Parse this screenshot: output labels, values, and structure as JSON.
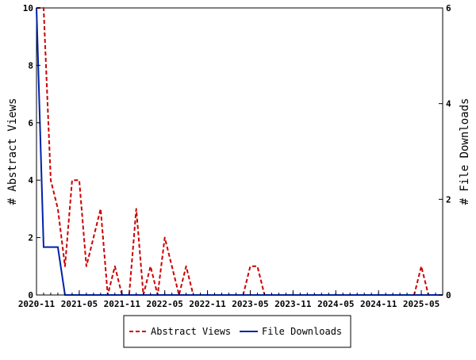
{
  "chart_data": {
    "type": "line",
    "ylabel": "# Abstract Views",
    "y2label": "# File Downloads",
    "ylim": [
      0,
      10
    ],
    "y2lim": [
      0,
      6
    ],
    "yticks": [
      "0",
      "2",
      "4",
      "6",
      "8",
      "10"
    ],
    "y2ticks": [
      "0",
      "2",
      "4",
      "6"
    ],
    "xticks": [
      {
        "label": "2020-11",
        "month": 0
      },
      {
        "label": "2021-05",
        "month": 6
      },
      {
        "label": "2021-11",
        "month": 12
      },
      {
        "label": "2022-05",
        "month": 18
      },
      {
        "label": "2022-11",
        "month": 24
      },
      {
        "label": "2023-05",
        "month": 30
      },
      {
        "label": "2023-11",
        "month": 36
      },
      {
        "label": "2024-05",
        "month": 42
      },
      {
        "label": "2024-11",
        "month": 48
      },
      {
        "label": "2025-05",
        "month": 54
      }
    ],
    "x_first_month": "2020-11",
    "x_month_count": 58,
    "grid": false,
    "legend_position": "bottom",
    "series": [
      {
        "name": "Abstract Views",
        "axis": "left",
        "color": "#cc0000",
        "style": "dashed",
        "values": [
          10,
          10,
          4,
          3,
          1,
          4,
          4,
          1,
          2,
          3,
          0,
          1,
          0,
          0,
          3,
          0,
          1,
          0,
          2,
          1,
          0,
          1,
          0,
          0,
          0,
          0,
          0,
          0,
          0,
          0,
          1,
          1,
          0,
          0,
          0,
          0,
          0,
          0,
          0,
          0,
          0,
          0,
          0,
          0,
          0,
          0,
          0,
          0,
          0,
          0,
          0,
          0,
          0,
          0,
          1,
          0,
          0,
          0
        ]
      },
      {
        "name": "File Downloads",
        "axis": "right",
        "color": "#0022aa",
        "style": "solid",
        "values": [
          6,
          1,
          1,
          1,
          0,
          0,
          0,
          0,
          0,
          0,
          0,
          0,
          0,
          0,
          0,
          0,
          0,
          0,
          0,
          0,
          0,
          0,
          0,
          0,
          0,
          0,
          0,
          0,
          0,
          0,
          0,
          0,
          0,
          0,
          0,
          0,
          0,
          0,
          0,
          0,
          0,
          0,
          0,
          0,
          0,
          0,
          0,
          0,
          0,
          0,
          0,
          0,
          0,
          0,
          0,
          0,
          0,
          0
        ]
      }
    ]
  }
}
